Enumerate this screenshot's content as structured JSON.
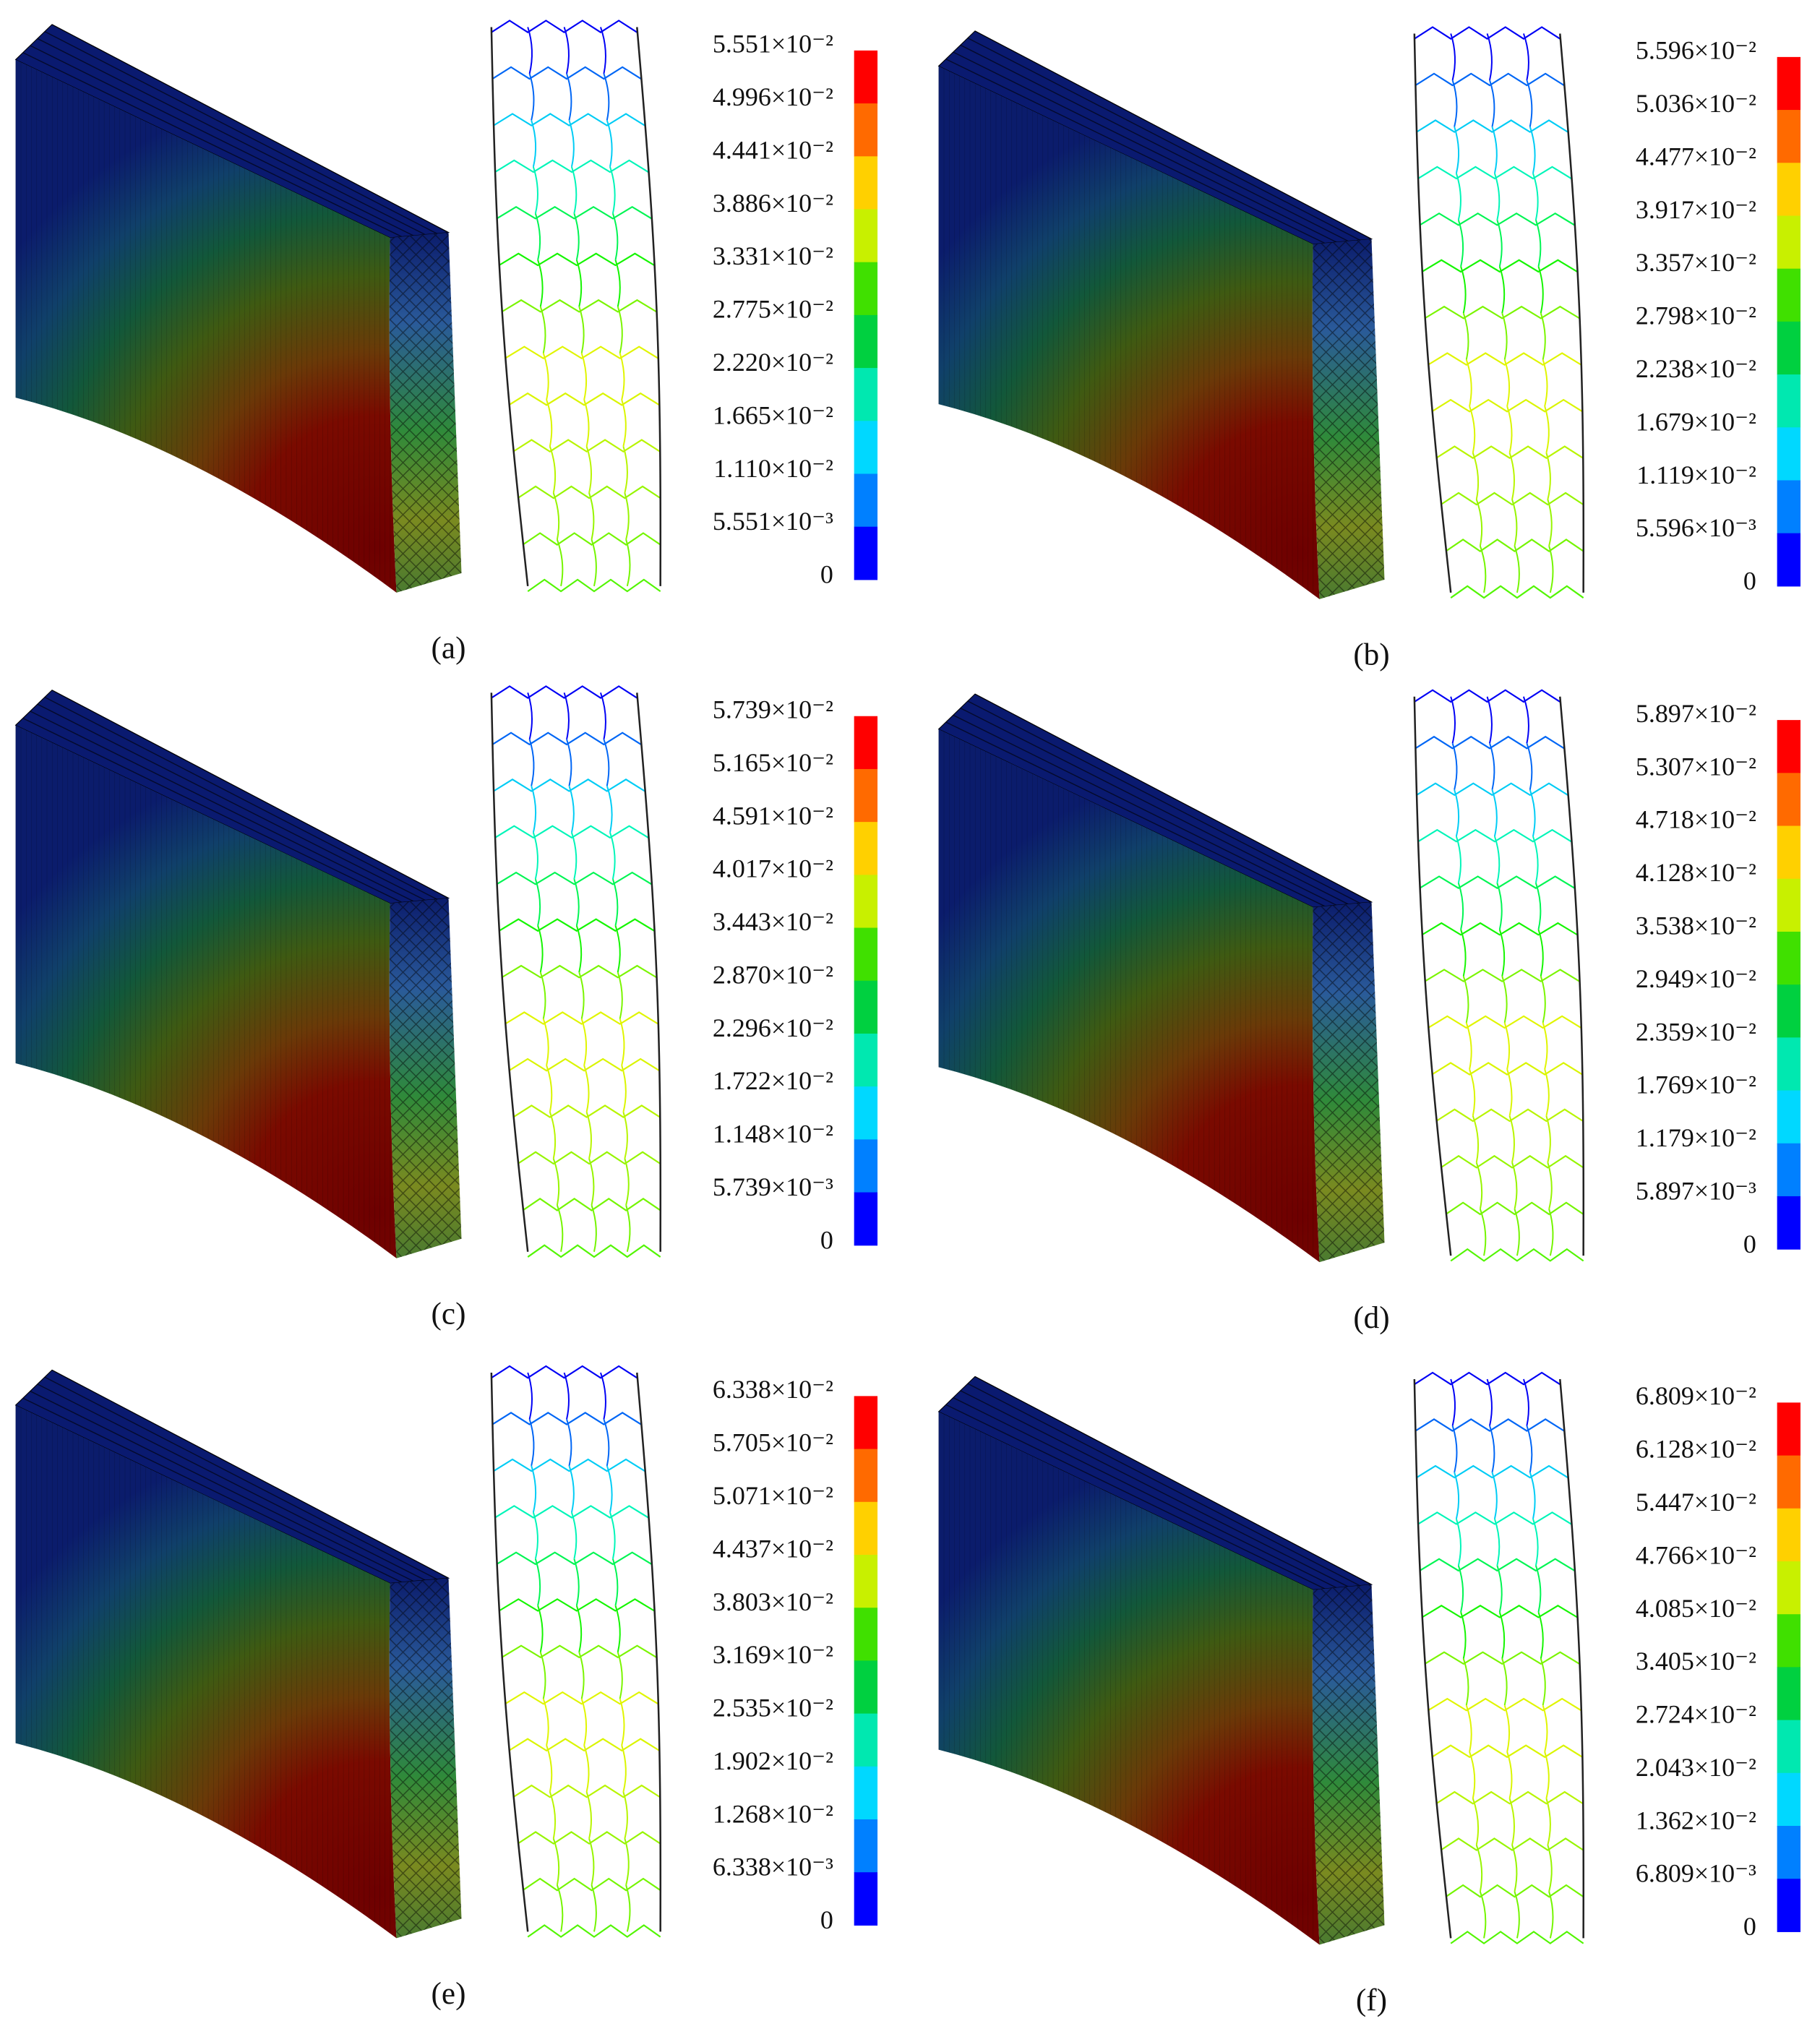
{
  "figure": {
    "colorbar_colors": [
      "#ff0000",
      "#ff6a00",
      "#ffd000",
      "#c8f000",
      "#40e000",
      "#00d040",
      "#00e8b0",
      "#00d8ff",
      "#0080ff",
      "#0000ff"
    ],
    "panels": [
      {
        "label": "(a)",
        "ticks": [
          "5.551×10⁻²",
          "4.996×10⁻²",
          "4.441×10⁻²",
          "3.886×10⁻²",
          "3.331×10⁻²",
          "2.775×10⁻²",
          "2.220×10⁻²",
          "1.665×10⁻²",
          "1.110×10⁻²",
          "5.551×10⁻³",
          "0"
        ]
      },
      {
        "label": "(b)",
        "ticks": [
          "5.596×10⁻²",
          "5.036×10⁻²",
          "4.477×10⁻²",
          "3.917×10⁻²",
          "3.357×10⁻²",
          "2.798×10⁻²",
          "2.238×10⁻²",
          "1.679×10⁻²",
          "1.119×10⁻²",
          "5.596×10⁻³",
          "0"
        ]
      },
      {
        "label": "(c)",
        "ticks": [
          "5.739×10⁻²",
          "5.165×10⁻²",
          "4.591×10⁻²",
          "4.017×10⁻²",
          "3.443×10⁻²",
          "2.870×10⁻²",
          "2.296×10⁻²",
          "1.722×10⁻²",
          "1.148×10⁻²",
          "5.739×10⁻³",
          "0"
        ]
      },
      {
        "label": "(d)",
        "ticks": [
          "5.897×10⁻²",
          "5.307×10⁻²",
          "4.718×10⁻²",
          "4.128×10⁻²",
          "3.538×10⁻²",
          "2.949×10⁻²",
          "2.359×10⁻²",
          "1.769×10⁻²",
          "1.179×10⁻²",
          "5.897×10⁻³",
          "0"
        ]
      },
      {
        "label": "(e)",
        "ticks": [
          "6.338×10⁻²",
          "5.705×10⁻²",
          "5.071×10⁻²",
          "4.437×10⁻²",
          "3.803×10⁻²",
          "3.169×10⁻²",
          "2.535×10⁻²",
          "1.902×10⁻²",
          "1.268×10⁻²",
          "6.338×10⁻³",
          "0"
        ]
      },
      {
        "label": "(f)",
        "ticks": [
          "6.809×10⁻²",
          "6.128×10⁻²",
          "5.447×10⁻²",
          "4.766×10⁻²",
          "4.085×10⁻²",
          "3.405×10⁻²",
          "2.724×10⁻²",
          "2.043×10⁻²",
          "1.362×10⁻²",
          "6.809×10⁻³",
          "0"
        ]
      }
    ]
  }
}
